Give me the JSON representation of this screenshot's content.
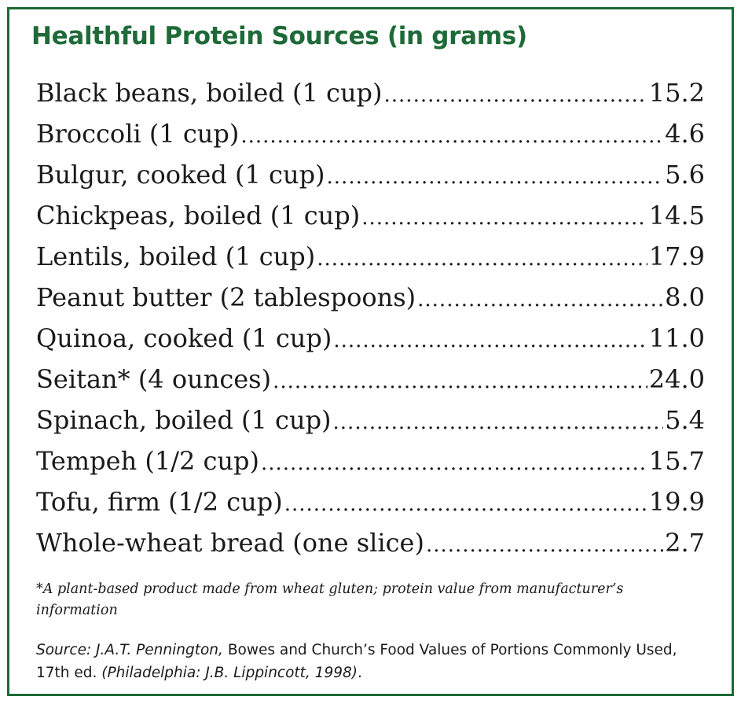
{
  "title": "Healthful Protein Sources (in grams)",
  "items": [
    {
      "food": "Black beans, boiled (1 cup)",
      "grams": "15.2"
    },
    {
      "food": "Broccoli (1 cup)",
      "grams": "4.6"
    },
    {
      "food": "Bulgur, cooked (1 cup)",
      "grams": "5.6"
    },
    {
      "food": "Chickpeas, boiled (1 cup)",
      "grams": "14.5"
    },
    {
      "food": "Lentils, boiled (1 cup)",
      "grams": "17.9"
    },
    {
      "food": "Peanut butter (2 tablespoons)",
      "grams": "8.0"
    },
    {
      "food": "Quinoa, cooked (1 cup)",
      "grams": "11.0"
    },
    {
      "food": "Seitan* (4 ounces)",
      "grams": "24.0"
    },
    {
      "food": "Spinach, boiled (1 cup)",
      "grams": "5.4"
    },
    {
      "food": "Tempeh (1/2 cup)",
      "grams": "15.7"
    },
    {
      "food": "Tofu, firm (1/2 cup)",
      "grams": "19.9"
    },
    {
      "food": "Whole-wheat bread (one slice)",
      "grams": "2.7"
    }
  ],
  "footnote": "*A plant-based product made from wheat gluten; protein value from manufacturer’s information",
  "source": {
    "prefix": "Source: J.A.T. Pennington,",
    "book_title": "Bowes and Church’s Food Values of Portions Commonly Used, 17th ed.",
    "publisher": "(Philadelphia: J.B. Lippincott, 1998)",
    "end": "."
  },
  "colors": {
    "accent": "#1e6a38",
    "text": "#1a1a1a"
  }
}
